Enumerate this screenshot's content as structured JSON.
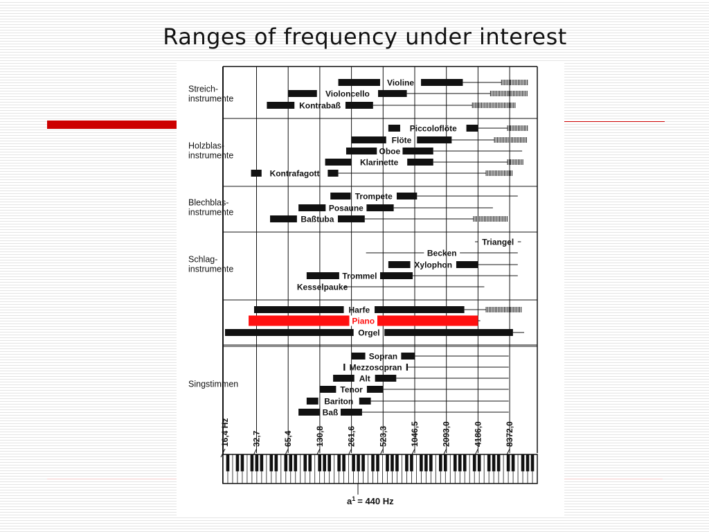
{
  "slide": {
    "title": "Ranges of frequency under interest",
    "accent_color": "#cc0000",
    "line_color": "#cc0000"
  },
  "chart_data": {
    "type": "range-chart",
    "axis_ticks_hz": [
      {
        "label": "16,4 Hz",
        "hz": 16.4
      },
      {
        "label": "32,7",
        "hz": 32.7
      },
      {
        "label": "65,4",
        "hz": 65.4
      },
      {
        "label": "130,8",
        "hz": 130.8
      },
      {
        "label": "261,6",
        "hz": 261.6
      },
      {
        "label": "523,3",
        "hz": 523.3
      },
      {
        "label": "1046,5",
        "hz": 1046.5
      },
      {
        "label": "2093,0",
        "hz": 2093.0
      },
      {
        "label": "4186,0",
        "hz": 4186.0
      },
      {
        "label": "8372,0",
        "hz": 8372.0
      }
    ],
    "xlim_hz": [
      12,
      14500
    ],
    "footer_label": "= 440 Hz",
    "footer_note": "a",
    "footer_superscript": "1",
    "groups": [
      {
        "label_lines": [
          "Streich-",
          "instrumente"
        ],
        "from_row": 0,
        "to_row": 2
      },
      {
        "label_lines": [
          "Holzblas-",
          "instrumente"
        ],
        "from_row": 3,
        "to_row": 7
      },
      {
        "label_lines": [
          "Blechblas-",
          "instrumente"
        ],
        "from_row": 8,
        "to_row": 10
      },
      {
        "label_lines": [
          "Schlag-",
          "instrumente"
        ],
        "from_row": 11,
        "to_row": 15
      },
      {
        "label_lines": [],
        "from_row": 16,
        "to_row": 18
      },
      {
        "label_lines": [
          "Singstimmen"
        ],
        "from_row": 19,
        "to_row": 24
      }
    ],
    "rows": [
      {
        "name": "Violine",
        "low": 196,
        "high": 3000,
        "line_end": 7000,
        "noise_end": 12500
      },
      {
        "name": "Violoncello",
        "low": 65.4,
        "high": 880,
        "line_end": 5500,
        "noise_end": 12500
      },
      {
        "name": "Kontrabaß",
        "low": 41,
        "high": 420,
        "line_end": 3700,
        "noise_end": 9500
      },
      {
        "name": "Piccoloflöte",
        "low": 587,
        "high": 4200,
        "line_end": 8000,
        "noise_end": 12500
      },
      {
        "name": "Flöte",
        "low": 262,
        "high": 2350,
        "line_end": 6000,
        "noise_end": 12500
      },
      {
        "name": "Oboe",
        "low": 233,
        "high": 1570,
        "line_end": 11000,
        "noise_end": 0
      },
      {
        "name": "Klarinette",
        "low": 147,
        "high": 1570,
        "line_end": 8000,
        "noise_end": 11500
      },
      {
        "name": "Kontrafagott",
        "low": 29,
        "high": 196,
        "line_end": 5000,
        "noise_end": 9000
      },
      {
        "name": "Trompete",
        "low": 165,
        "high": 1100,
        "line_end": 10000,
        "noise_end": 0
      },
      {
        "name": "Posaune",
        "low": 82,
        "high": 660,
        "line_end": 5800,
        "noise_end": 0
      },
      {
        "name": "Baßtuba",
        "low": 44,
        "high": 350,
        "line_end": 3800,
        "noise_end": 8000
      },
      {
        "name": "Triangel",
        "low": 0,
        "high": 0,
        "line_start": 4200,
        "line_end": 10000,
        "noise_end": 0
      },
      {
        "name": "Becken",
        "low": 0,
        "high": 0,
        "line_start": 360,
        "line_end": 10000,
        "noise_end": 0
      },
      {
        "name": "Xylophon",
        "low": 587,
        "high": 4200,
        "line_end": 10000,
        "noise_end": 0
      },
      {
        "name": "Trommel",
        "low": 98,
        "high": 1000,
        "line_end": 10000,
        "noise_end": 0
      },
      {
        "name": "Kesselpauke",
        "low": 87,
        "high": 220,
        "line_end": 4800,
        "noise_end": 0
      },
      {
        "name": "Harfe",
        "low": 31,
        "high": 3100,
        "line_end": 5000,
        "noise_end": 11000
      },
      {
        "name": "Piano",
        "low": 27.5,
        "high": 4186,
        "line_end": 4400,
        "noise_end": 0,
        "highlight": true
      },
      {
        "name": "Orgel",
        "low": 16.4,
        "high": 9000,
        "line_end": 11500,
        "noise_end": 0
      },
      {
        "name": "Sopran",
        "low": 262,
        "high": 1050,
        "line_end": 8200,
        "noise_end": 0
      },
      {
        "name": "Mezzosopran",
        "low": 220,
        "high": 900,
        "line_end": 8200,
        "noise_end": 0
      },
      {
        "name": "Alt",
        "low": 175,
        "high": 698,
        "line_end": 8200,
        "noise_end": 0
      },
      {
        "name": "Tenor",
        "low": 131,
        "high": 523,
        "line_end": 8200,
        "noise_end": 0
      },
      {
        "name": "Bariton",
        "low": 98,
        "high": 400,
        "line_end": 8200,
        "noise_end": 0
      },
      {
        "name": "Baß",
        "low": 82,
        "high": 330,
        "line_end": 8200,
        "noise_end": 0
      }
    ],
    "colors": {
      "bar": "#111111",
      "highlight": "#ff1010",
      "highlight_text": "#ff1010"
    }
  }
}
